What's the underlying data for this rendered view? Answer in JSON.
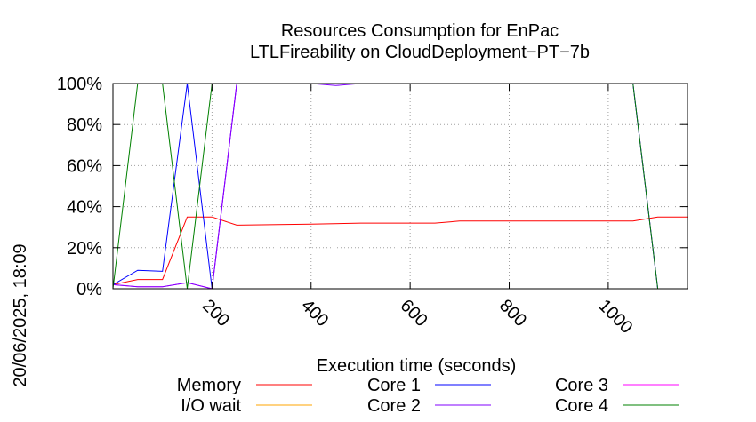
{
  "chart_data": {
    "type": "line",
    "title": "Resources Consumption for EnPac",
    "subtitle": "LTLFireability on CloudDeployment−PT−7b",
    "xlabel": "Execution time (seconds)",
    "ylabel": "",
    "side_label": "20/06/2025, 18:09",
    "xlim": [
      0,
      1160
    ],
    "ylim": [
      0,
      100
    ],
    "grid": true,
    "legend_position": "bottom",
    "x_ticks": [
      {
        "value": 200,
        "label": "200"
      },
      {
        "value": 400,
        "label": "400"
      },
      {
        "value": 600,
        "label": "600"
      },
      {
        "value": 800,
        "label": "800"
      },
      {
        "value": 1000,
        "label": "1000"
      }
    ],
    "y_ticks": [
      {
        "value": 0,
        "label": "0%"
      },
      {
        "value": 20,
        "label": "20%"
      },
      {
        "value": 40,
        "label": "40%"
      },
      {
        "value": 60,
        "label": "60%"
      },
      {
        "value": 80,
        "label": "80%"
      },
      {
        "value": 100,
        "label": "100%"
      }
    ],
    "series": [
      {
        "name": "Memory",
        "color": "#ff0000",
        "points": [
          [
            0,
            2
          ],
          [
            50,
            4.5
          ],
          [
            100,
            4.5
          ],
          [
            150,
            35
          ],
          [
            200,
            35
          ],
          [
            250,
            31
          ],
          [
            400,
            31.5
          ],
          [
            500,
            32
          ],
          [
            650,
            32
          ],
          [
            700,
            33
          ],
          [
            1050,
            33
          ],
          [
            1100,
            35
          ],
          [
            1160,
            35
          ]
        ]
      },
      {
        "name": "Core 1",
        "color": "#0000ff",
        "points": [
          [
            0,
            2
          ],
          [
            50,
            9
          ],
          [
            100,
            8.5
          ],
          [
            150,
            100
          ],
          [
            200,
            0
          ],
          [
            250,
            100
          ],
          [
            1050,
            100
          ],
          [
            1100,
            0
          ],
          [
            1160,
            0
          ]
        ]
      },
      {
        "name": "Core 3",
        "color": "#ff00ff",
        "points": [
          [
            0,
            2
          ],
          [
            50,
            1
          ],
          [
            100,
            1
          ],
          [
            150,
            3
          ],
          [
            200,
            0
          ],
          [
            250,
            100
          ],
          [
            1050,
            100
          ],
          [
            1100,
            100
          ],
          [
            1160,
            100
          ]
        ]
      },
      {
        "name": "I/O wait",
        "color": "#ffa500",
        "points": [
          [
            0,
            0
          ],
          [
            50,
            0
          ],
          [
            100,
            0
          ],
          [
            150,
            0
          ],
          [
            200,
            0
          ]
        ]
      },
      {
        "name": "Core 2",
        "color": "#8000ff",
        "points": [
          [
            0,
            2
          ],
          [
            50,
            1
          ],
          [
            100,
            1
          ],
          [
            150,
            3
          ],
          [
            200,
            0
          ],
          [
            250,
            100
          ],
          [
            400,
            100
          ],
          [
            450,
            99
          ],
          [
            500,
            100
          ],
          [
            1050,
            100
          ],
          [
            1100,
            0
          ],
          [
            1160,
            0
          ]
        ]
      },
      {
        "name": "Core 4",
        "color": "#008000",
        "points": [
          [
            0,
            0
          ],
          [
            50,
            100
          ],
          [
            100,
            100
          ],
          [
            150,
            0
          ],
          [
            200,
            100
          ],
          [
            250,
            100
          ],
          [
            1050,
            100
          ],
          [
            1100,
            0
          ],
          [
            1160,
            0
          ]
        ]
      }
    ]
  }
}
